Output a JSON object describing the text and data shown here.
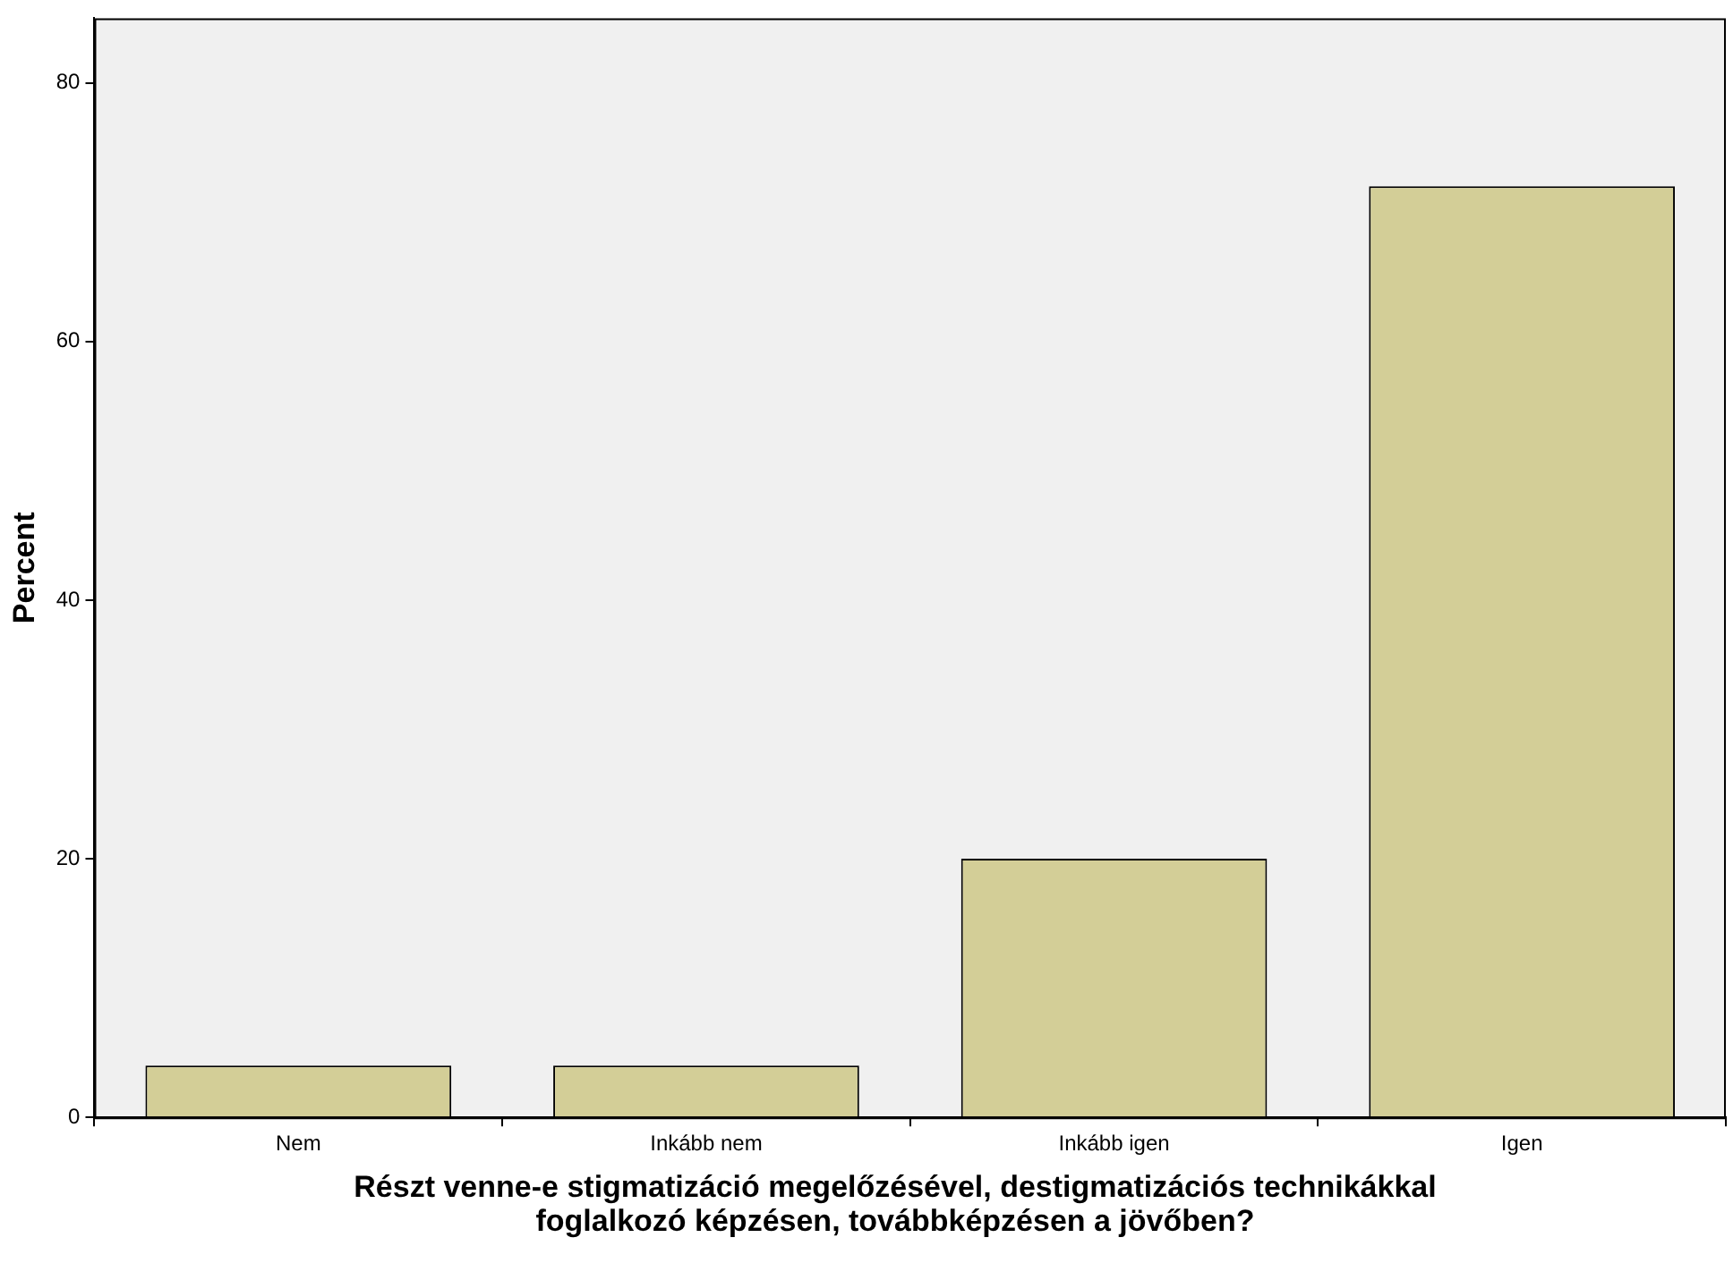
{
  "chart_data": {
    "type": "bar",
    "xlabel": "Részt venne-e stigmatizáció megelőzésével, destigmatizációs technikákkal foglalkozó képzésen, továbbképzésen a jövőben?",
    "ylabel": "Percent",
    "categories": [
      "Nem",
      "Inkább nem",
      "Inkább igen",
      "Igen"
    ],
    "values": [
      4,
      4,
      20,
      72
    ],
    "color": "#d3ce97",
    "ylim": [
      0,
      85
    ],
    "yticks": [
      0,
      20,
      40,
      60,
      80
    ],
    "grid": false
  }
}
